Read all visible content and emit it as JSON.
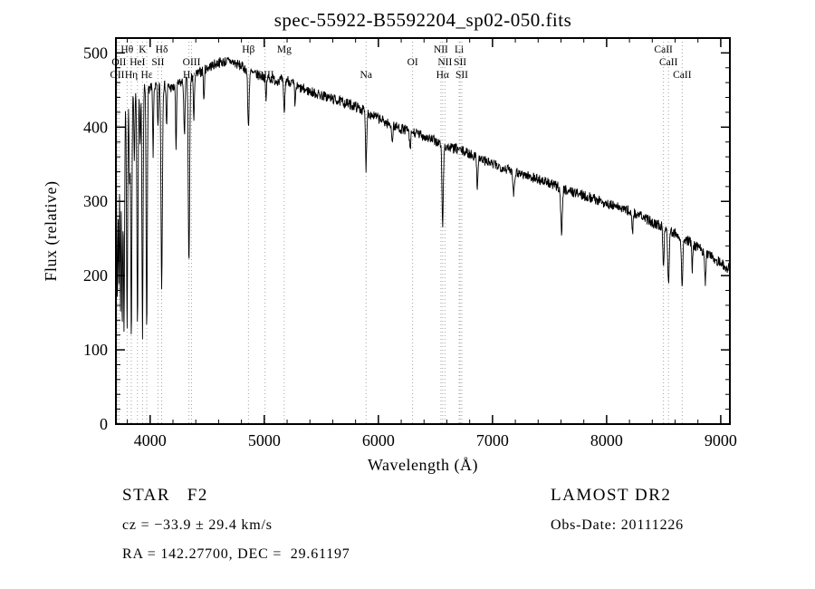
{
  "chart_data": {
    "type": "line",
    "title": "spec-55922-B5592204_sp02-050.fits",
    "xlabel": "Wavelength (Å)",
    "ylabel": "Flux (relative)",
    "xlim": [
      3700,
      9080
    ],
    "ylim": [
      0,
      520
    ],
    "x_ticks": [
      4000,
      5000,
      6000,
      7000,
      8000,
      9000
    ],
    "y_ticks": [
      0,
      100,
      200,
      300,
      400,
      500
    ],
    "x_minor_step": 200,
    "y_minor_step": 20,
    "line_color": "#000000",
    "marker_line_color": "#9a9a9a",
    "sample_step": 3,
    "noise": {
      "amplitude": 7,
      "seed": 7
    },
    "continuum": [
      [
        3700,
        415
      ],
      [
        3750,
        432
      ],
      [
        3800,
        442
      ],
      [
        3850,
        446
      ],
      [
        3900,
        450
      ],
      [
        3950,
        452
      ],
      [
        4000,
        452
      ],
      [
        4050,
        455
      ],
      [
        4100,
        457
      ],
      [
        4150,
        455
      ],
      [
        4200,
        452
      ],
      [
        4250,
        458
      ],
      [
        4300,
        462
      ],
      [
        4350,
        465
      ],
      [
        4400,
        470
      ],
      [
        4500,
        480
      ],
      [
        4600,
        487
      ],
      [
        4700,
        489
      ],
      [
        4800,
        482
      ],
      [
        4900,
        472
      ],
      [
        5000,
        468
      ],
      [
        5100,
        463
      ],
      [
        5200,
        464
      ],
      [
        5300,
        453
      ],
      [
        5400,
        448
      ],
      [
        5500,
        443
      ],
      [
        5600,
        438
      ],
      [
        5700,
        433
      ],
      [
        5800,
        428
      ],
      [
        5900,
        420
      ],
      [
        6000,
        412
      ],
      [
        6100,
        403
      ],
      [
        6200,
        398
      ],
      [
        6300,
        393
      ],
      [
        6400,
        388
      ],
      [
        6500,
        381
      ],
      [
        6600,
        373
      ],
      [
        6700,
        370
      ],
      [
        6800,
        364
      ],
      [
        6900,
        357
      ],
      [
        7000,
        350
      ],
      [
        7100,
        345
      ],
      [
        7200,
        340
      ],
      [
        7300,
        335
      ],
      [
        7400,
        330
      ],
      [
        7500,
        324
      ],
      [
        7600,
        318
      ],
      [
        7700,
        313
      ],
      [
        7800,
        308
      ],
      [
        7900,
        303
      ],
      [
        8000,
        297
      ],
      [
        8100,
        292
      ],
      [
        8200,
        287
      ],
      [
        8300,
        280
      ],
      [
        8400,
        272
      ],
      [
        8500,
        265
      ],
      [
        8600,
        257
      ],
      [
        8700,
        248
      ],
      [
        8800,
        238
      ],
      [
        8900,
        228
      ],
      [
        9000,
        217
      ],
      [
        9080,
        208
      ]
    ],
    "absorption_lines": [
      [
        3712,
        255,
        5
      ],
      [
        3726,
        230,
        4
      ],
      [
        3740,
        280,
        4
      ],
      [
        3755,
        295,
        5
      ],
      [
        3771,
        305,
        5
      ],
      [
        3798,
        315,
        5
      ],
      [
        3820,
        120,
        4
      ],
      [
        3835,
        328,
        5
      ],
      [
        3862,
        90,
        4
      ],
      [
        3889,
        318,
        5
      ],
      [
        3912,
        80,
        4
      ],
      [
        3933,
        330,
        5
      ],
      [
        3970,
        325,
        5
      ],
      [
        4026,
        90,
        4
      ],
      [
        4068,
        60,
        4
      ],
      [
        4101,
        272,
        6
      ],
      [
        4144,
        55,
        4
      ],
      [
        4227,
        85,
        4
      ],
      [
        4300,
        75,
        5
      ],
      [
        4340,
        248,
        6
      ],
      [
        4383,
        65,
        4
      ],
      [
        4471,
        45,
        4
      ],
      [
        4861,
        75,
        6
      ],
      [
        5015,
        35,
        4
      ],
      [
        5175,
        42,
        6
      ],
      [
        5270,
        30,
        4
      ],
      [
        5892,
        76,
        5
      ],
      [
        6122,
        25,
        4
      ],
      [
        6278,
        28,
        5
      ],
      [
        6563,
        106,
        6
      ],
      [
        6867,
        38,
        5
      ],
      [
        7186,
        30,
        6
      ],
      [
        7605,
        58,
        7
      ],
      [
        8227,
        28,
        5
      ],
      [
        8498,
        55,
        5
      ],
      [
        8542,
        72,
        6
      ],
      [
        8662,
        65,
        6
      ],
      [
        8750,
        35,
        5
      ],
      [
        8865,
        40,
        5
      ]
    ],
    "spectral_markers": [
      {
        "label": "Hθ",
        "wavelength": 3798,
        "row": 0
      },
      {
        "label": "K",
        "wavelength": 3933,
        "row": 0
      },
      {
        "label": "Hδ",
        "wavelength": 4101,
        "row": 0
      },
      {
        "label": "Hβ",
        "wavelength": 4861,
        "row": 0
      },
      {
        "label": "Mg",
        "wavelength": 5175,
        "row": 0
      },
      {
        "label": "NII",
        "wavelength": 6548,
        "row": 0
      },
      {
        "label": "Li",
        "wavelength": 6708,
        "row": 0
      },
      {
        "label": "CaII",
        "wavelength": 8498,
        "row": 0
      },
      {
        "label": "OII",
        "wavelength": 3727,
        "row": 1
      },
      {
        "label": "HeI",
        "wavelength": 3889,
        "row": 1
      },
      {
        "label": "SII",
        "wavelength": 4068,
        "row": 1
      },
      {
        "label": "OIII",
        "wavelength": 4363,
        "row": 1
      },
      {
        "label": "OI",
        "wavelength": 6300,
        "row": 1
      },
      {
        "label": "NII",
        "wavelength": 6583,
        "row": 1
      },
      {
        "label": "SII",
        "wavelength": 6716,
        "row": 1
      },
      {
        "label": "CaII",
        "wavelength": 8542,
        "row": 1
      },
      {
        "label": "OII",
        "wavelength": 3712,
        "row": 2
      },
      {
        "label": "Hη",
        "wavelength": 3835,
        "row": 2
      },
      {
        "label": "Hε",
        "wavelength": 3970,
        "row": 2
      },
      {
        "label": "Hγ",
        "wavelength": 4340,
        "row": 2
      },
      {
        "label": "OIII",
        "wavelength": 5007,
        "row": 2
      },
      {
        "label": "Na",
        "wavelength": 5892,
        "row": 2
      },
      {
        "label": "Hα",
        "wavelength": 6563,
        "row": 2
      },
      {
        "label": "SII",
        "wavelength": 6731,
        "row": 2
      },
      {
        "label": "CaII",
        "wavelength": 8662,
        "row": 2
      }
    ]
  },
  "footer": {
    "object_class": "STAR   F2",
    "survey": "LAMOST DR2",
    "cz": "cz = −33.9 ± 29.4 km/s",
    "obs_date": "Obs-Date: 20111226",
    "coords": "RA = 142.27700, DEC =  29.61197"
  }
}
